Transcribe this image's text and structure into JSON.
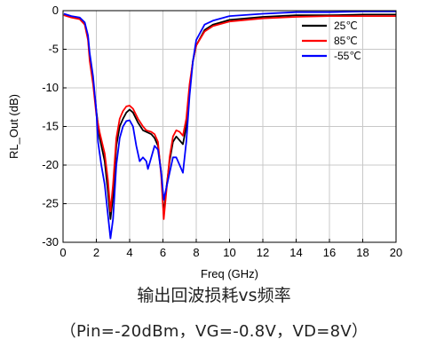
{
  "chart_data": {
    "type": "line",
    "xlabel": "Freq (GHz)",
    "ylabel": "RL_Out (dB)",
    "xlim": [
      0,
      20
    ],
    "ylim": [
      -30,
      0
    ],
    "xticks": [
      0,
      2,
      4,
      6,
      8,
      10,
      12,
      14,
      16,
      18,
      20
    ],
    "yticks": [
      0,
      -5,
      -10,
      -15,
      -20,
      -25,
      -30
    ],
    "grid": true,
    "legend_position": "top-right",
    "series": [
      {
        "name": "25℃",
        "color": "#000000",
        "points": [
          [
            0.05,
            -0.5
          ],
          [
            0.5,
            -0.8
          ],
          [
            1.0,
            -1.0
          ],
          [
            1.3,
            -1.6
          ],
          [
            1.5,
            -3.5
          ],
          [
            1.6,
            -6.0
          ],
          [
            1.8,
            -9.0
          ],
          [
            2.0,
            -13.0
          ],
          [
            2.2,
            -16.5
          ],
          [
            2.5,
            -19.5
          ],
          [
            2.7,
            -23.5
          ],
          [
            2.85,
            -27.0
          ],
          [
            3.0,
            -24.0
          ],
          [
            3.2,
            -17.5
          ],
          [
            3.4,
            -15.0
          ],
          [
            3.6,
            -14.0
          ],
          [
            3.8,
            -13.2
          ],
          [
            4.0,
            -12.8
          ],
          [
            4.2,
            -13.2
          ],
          [
            4.5,
            -14.5
          ],
          [
            4.8,
            -15.5
          ],
          [
            5.0,
            -15.7
          ],
          [
            5.3,
            -16.0
          ],
          [
            5.5,
            -16.5
          ],
          [
            5.7,
            -17.5
          ],
          [
            5.9,
            -21.0
          ],
          [
            6.05,
            -26.5
          ],
          [
            6.2,
            -23.0
          ],
          [
            6.4,
            -19.5
          ],
          [
            6.6,
            -17.0
          ],
          [
            6.8,
            -16.3
          ],
          [
            7.0,
            -16.8
          ],
          [
            7.2,
            -17.3
          ],
          [
            7.4,
            -15.0
          ],
          [
            7.6,
            -10.0
          ],
          [
            7.8,
            -6.5
          ],
          [
            8.0,
            -4.5
          ],
          [
            8.5,
            -2.5
          ],
          [
            9.0,
            -1.8
          ],
          [
            10.0,
            -1.2
          ],
          [
            12.0,
            -0.8
          ],
          [
            14.0,
            -0.6
          ],
          [
            16.0,
            -0.6
          ],
          [
            18.0,
            -0.5
          ],
          [
            20.0,
            -0.5
          ]
        ]
      },
      {
        "name": "85℃",
        "color": "#ff0000",
        "points": [
          [
            0.05,
            -0.6
          ],
          [
            0.5,
            -0.9
          ],
          [
            1.0,
            -1.1
          ],
          [
            1.3,
            -1.8
          ],
          [
            1.5,
            -3.8
          ],
          [
            1.6,
            -6.5
          ],
          [
            1.8,
            -9.5
          ],
          [
            2.0,
            -13.5
          ],
          [
            2.2,
            -15.8
          ],
          [
            2.5,
            -18.5
          ],
          [
            2.7,
            -22.0
          ],
          [
            2.85,
            -26.0
          ],
          [
            3.0,
            -22.5
          ],
          [
            3.2,
            -16.5
          ],
          [
            3.4,
            -14.0
          ],
          [
            3.6,
            -13.0
          ],
          [
            3.8,
            -12.4
          ],
          [
            4.0,
            -12.3
          ],
          [
            4.2,
            -12.7
          ],
          [
            4.5,
            -14.0
          ],
          [
            4.8,
            -15.0
          ],
          [
            5.0,
            -15.5
          ],
          [
            5.3,
            -15.7
          ],
          [
            5.5,
            -16.0
          ],
          [
            5.7,
            -17.0
          ],
          [
            5.9,
            -21.5
          ],
          [
            6.05,
            -27.0
          ],
          [
            6.2,
            -23.5
          ],
          [
            6.4,
            -19.0
          ],
          [
            6.6,
            -16.3
          ],
          [
            6.8,
            -15.5
          ],
          [
            7.0,
            -15.7
          ],
          [
            7.2,
            -16.2
          ],
          [
            7.4,
            -14.0
          ],
          [
            7.6,
            -9.5
          ],
          [
            7.8,
            -6.5
          ],
          [
            8.0,
            -4.5
          ],
          [
            8.5,
            -2.7
          ],
          [
            9.0,
            -2.0
          ],
          [
            10.0,
            -1.4
          ],
          [
            12.0,
            -1.0
          ],
          [
            14.0,
            -0.8
          ],
          [
            16.0,
            -0.7
          ],
          [
            18.0,
            -0.7
          ],
          [
            20.0,
            -0.7
          ]
        ]
      },
      {
        "name": "-55℃",
        "color": "#0000ff",
        "points": [
          [
            0.05,
            -0.4
          ],
          [
            0.5,
            -0.7
          ],
          [
            1.0,
            -0.9
          ],
          [
            1.3,
            -1.5
          ],
          [
            1.5,
            -3.2
          ],
          [
            1.6,
            -5.5
          ],
          [
            1.8,
            -8.5
          ],
          [
            2.0,
            -13.0
          ],
          [
            2.1,
            -17.0
          ],
          [
            2.3,
            -20.0
          ],
          [
            2.5,
            -22.5
          ],
          [
            2.7,
            -26.5
          ],
          [
            2.85,
            -29.5
          ],
          [
            3.0,
            -27.0
          ],
          [
            3.2,
            -20.0
          ],
          [
            3.4,
            -16.5
          ],
          [
            3.6,
            -15.0
          ],
          [
            3.8,
            -14.3
          ],
          [
            4.0,
            -14.2
          ],
          [
            4.2,
            -15.0
          ],
          [
            4.4,
            -17.5
          ],
          [
            4.6,
            -19.5
          ],
          [
            4.8,
            -19.0
          ],
          [
            5.0,
            -19.5
          ],
          [
            5.1,
            -20.5
          ],
          [
            5.3,
            -19.0
          ],
          [
            5.5,
            -17.5
          ],
          [
            5.7,
            -18.0
          ],
          [
            5.9,
            -21.0
          ],
          [
            6.05,
            -24.5
          ],
          [
            6.2,
            -23.0
          ],
          [
            6.4,
            -21.0
          ],
          [
            6.6,
            -19.0
          ],
          [
            6.8,
            -19.0
          ],
          [
            7.0,
            -20.0
          ],
          [
            7.2,
            -21.0
          ],
          [
            7.4,
            -17.0
          ],
          [
            7.6,
            -11.0
          ],
          [
            7.8,
            -6.5
          ],
          [
            8.0,
            -3.8
          ],
          [
            8.5,
            -1.8
          ],
          [
            9.0,
            -1.3
          ],
          [
            10.0,
            -0.7
          ],
          [
            12.0,
            -0.4
          ],
          [
            14.0,
            -0.2
          ],
          [
            16.0,
            -0.2
          ],
          [
            18.0,
            -0.1
          ],
          [
            20.0,
            -0.1
          ]
        ]
      }
    ]
  },
  "caption": {
    "title": "输出回波损耗vs频率",
    "conditions": "（Pin=-20dBm，VG=-0.8V，VD=8V）"
  }
}
